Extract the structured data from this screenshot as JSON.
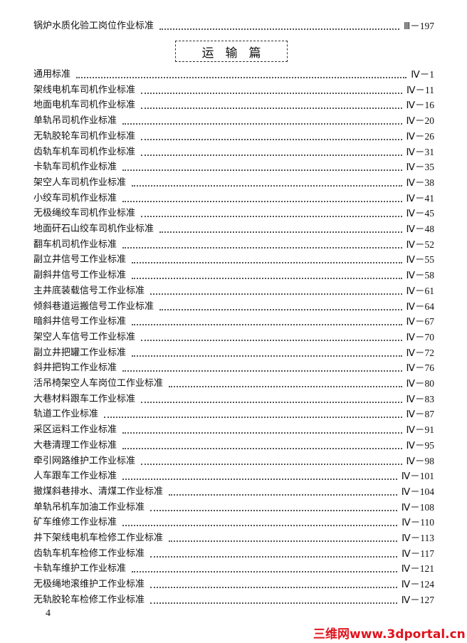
{
  "prev_entry": {
    "title": "锅炉水质化验工岗位作业标准",
    "page": "Ⅲ－197"
  },
  "section_title": "运输篇",
  "entries": [
    {
      "title": "通用标准",
      "page": "Ⅳ－1"
    },
    {
      "title": "架线电机车司机作业标准",
      "page": "Ⅳ－11"
    },
    {
      "title": "地面电机车司机作业标准",
      "page": "Ⅳ－16"
    },
    {
      "title": "单轨吊司机作业标准",
      "page": "Ⅳ－20"
    },
    {
      "title": "无轨胶轮车司机作业标准",
      "page": "Ⅳ－26"
    },
    {
      "title": "齿轨车机车司机作业标准",
      "page": "Ⅳ－31"
    },
    {
      "title": "卡轨车司机作业标准",
      "page": "Ⅳ－35"
    },
    {
      "title": "架空人车司机作业标准",
      "page": "Ⅳ－38"
    },
    {
      "title": "小绞车司机作业标准",
      "page": "Ⅳ－41"
    },
    {
      "title": "无极绳绞车司机作业标准",
      "page": "Ⅳ－45"
    },
    {
      "title": "地面矸石山绞车司机作业标准",
      "page": "Ⅳ－48"
    },
    {
      "title": "翻车机司机作业标准",
      "page": "Ⅳ－52"
    },
    {
      "title": "副立井信号工作业标准",
      "page": "Ⅳ－55"
    },
    {
      "title": "副斜井信号工作业标准",
      "page": "Ⅳ－58"
    },
    {
      "title": "主井底装载信号工作业标准",
      "page": "Ⅳ－61"
    },
    {
      "title": "倾斜巷道运搬信号工作业标准",
      "page": "Ⅳ－64"
    },
    {
      "title": "暗斜井信号工作业标准",
      "page": "Ⅳ－67"
    },
    {
      "title": "架空人车信号工作业标准",
      "page": "Ⅳ－70"
    },
    {
      "title": "副立井把罐工作业标准",
      "page": "Ⅳ－72"
    },
    {
      "title": "斜井把钩工作业标准",
      "page": "Ⅳ－76"
    },
    {
      "title": "活吊椅架空人车岗位工作业标准",
      "page": "Ⅳ－80"
    },
    {
      "title": "大巷材料跟车工作业标准",
      "page": "Ⅳ－83"
    },
    {
      "title": "轨道工作业标准",
      "page": "Ⅳ－87"
    },
    {
      "title": "采区运料工作业标准",
      "page": "Ⅳ－91"
    },
    {
      "title": "大巷清理工作业标准",
      "page": "Ⅳ－95"
    },
    {
      "title": "牵引网路维护工作业标准",
      "page": "Ⅳ－98"
    },
    {
      "title": "人车跟车工作业标准",
      "page": "Ⅳ－101"
    },
    {
      "title": "撤煤斜巷排水、清煤工作业标准",
      "page": "Ⅳ－104"
    },
    {
      "title": "单轨吊机车加油工作业标准",
      "page": "Ⅳ－108"
    },
    {
      "title": "矿车维修工作业标准",
      "page": "Ⅳ－110"
    },
    {
      "title": "井下架线电机车检修工作业标准",
      "page": "Ⅳ－113"
    },
    {
      "title": "齿轨车机车检修工作业标准",
      "page": "Ⅳ－117"
    },
    {
      "title": "卡轨车维护工作业标准",
      "page": "Ⅳ－121"
    },
    {
      "title": "无极绳地滚维护工作业标准",
      "page": "Ⅳ－124"
    },
    {
      "title": "无轨胶轮车检修工作业标准",
      "page": "Ⅳ－127"
    }
  ],
  "page_number": "4",
  "watermark": "三维网www.3dportal.cn",
  "colors": {
    "watermark": "#e0141e",
    "text": "#111111"
  }
}
